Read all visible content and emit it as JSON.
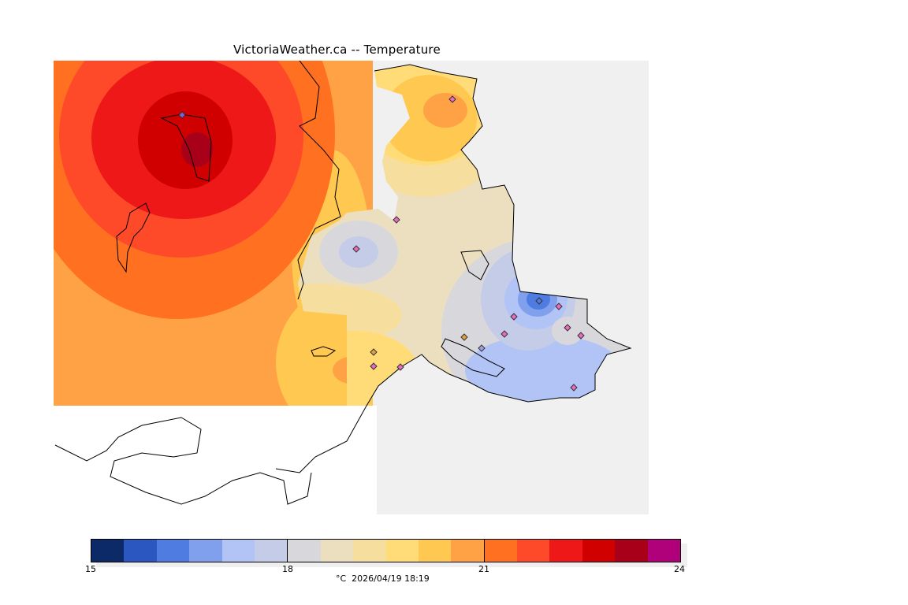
{
  "title": "VictoriaWeather.ca -- Temperature",
  "colorbar": {
    "colors": [
      "#0c2a68",
      "#2a58c0",
      "#4e7ce0",
      "#80a0ee",
      "#b2c4f6",
      "#c4cce8",
      "#d8d8dc",
      "#ecdfc0",
      "#f6de9e",
      "#ffdc78",
      "#ffc850",
      "#ffa245",
      "#ff7020",
      "#ff4a2a",
      "#ee1818",
      "#d00000",
      "#a80018",
      "#b0007a"
    ],
    "ticks": [
      "15",
      "18",
      "21",
      "24"
    ],
    "unit_caption": "°C  2026/04/19 18:19"
  },
  "map": {
    "background": "#f0f0f0",
    "station_count": 16
  }
}
